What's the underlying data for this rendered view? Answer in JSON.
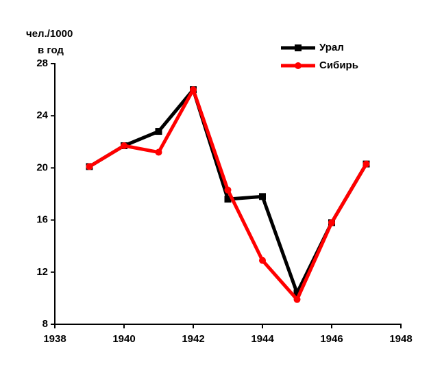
{
  "chart_data": {
    "type": "line",
    "y_label_lines": [
      "чел./1000",
      "в год"
    ],
    "x": [
      1939,
      1940,
      1941,
      1942,
      1943,
      1944,
      1945,
      1946,
      1947
    ],
    "series": [
      {
        "name": "Урал",
        "color": "#000000",
        "marker": "square",
        "values": [
          20.1,
          21.7,
          22.8,
          26.0,
          17.6,
          17.8,
          10.4,
          15.8,
          20.3
        ]
      },
      {
        "name": "Сибирь",
        "color": "#ff0000",
        "marker": "circle",
        "values": [
          20.1,
          21.7,
          21.2,
          26.0,
          18.3,
          12.9,
          9.9,
          15.8,
          20.3
        ]
      }
    ],
    "xlim": [
      1938,
      1948
    ],
    "xticks": [
      1938,
      1940,
      1942,
      1944,
      1946,
      1948
    ],
    "ylim": [
      8,
      28
    ],
    "yticks": [
      8,
      12,
      16,
      20,
      24,
      28
    ],
    "grid": false,
    "legend": "upper-right"
  }
}
